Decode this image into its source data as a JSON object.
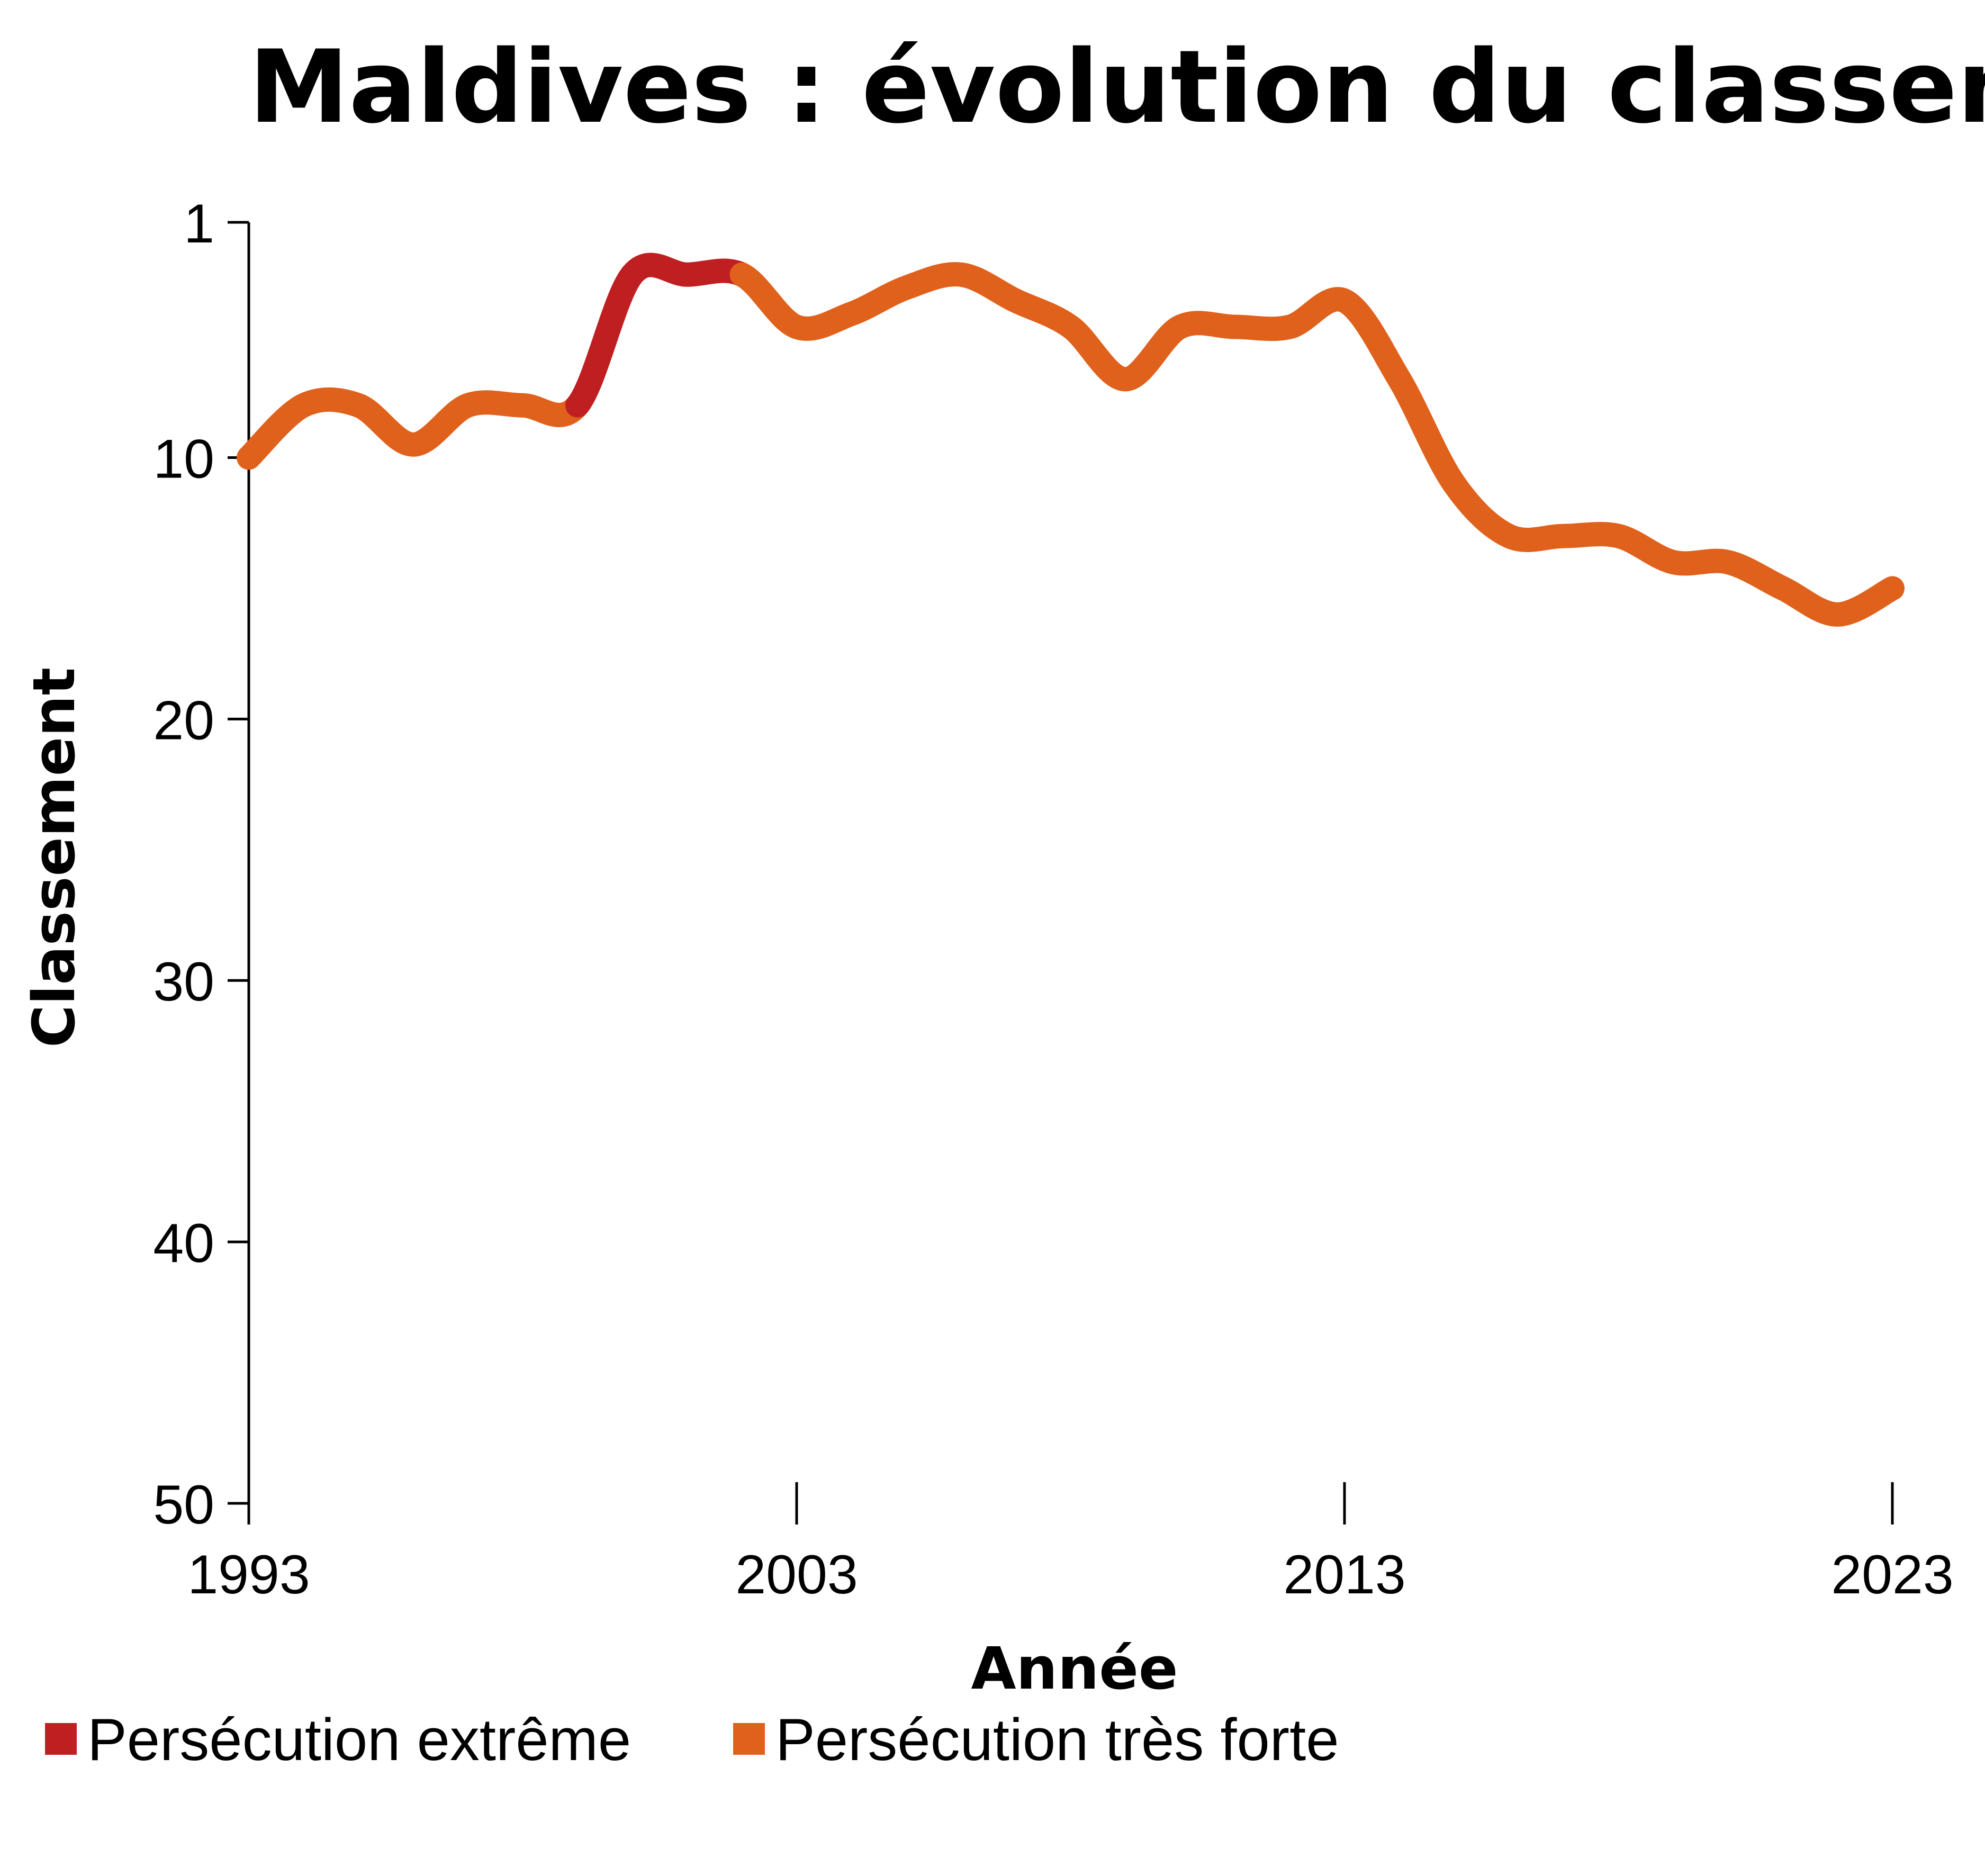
{
  "chart_data": {
    "type": "line",
    "title": "Maldives : évolution du classement",
    "xlabel": "Année",
    "ylabel": "Classement",
    "xlim": [
      1993,
      2023
    ],
    "ylim": [
      1,
      50
    ],
    "y_inverted": true,
    "x_ticks": [
      1993,
      2003,
      2013,
      2023
    ],
    "y_ticks": [
      1,
      10,
      20,
      30,
      40,
      50
    ],
    "x_tick_labels": [
      "1993",
      "2003",
      "2013",
      "2023"
    ],
    "y_tick_labels": [
      "1",
      "10",
      "20",
      "30",
      "40",
      "50"
    ],
    "grid": false,
    "legend_position": "bottom-left",
    "categories": [
      {
        "key": "extreme",
        "label": "Persécution extrême",
        "color": "#c01f22"
      },
      {
        "key": "very_strong",
        "label": "Persécution très forte",
        "color": "#e0611c"
      }
    ],
    "points": [
      {
        "year": 1993,
        "rank": 10,
        "category": "very_strong"
      },
      {
        "year": 1994,
        "rank": 8,
        "category": "very_strong"
      },
      {
        "year": 1995,
        "rank": 8,
        "category": "very_strong"
      },
      {
        "year": 1996,
        "rank": 9.5,
        "category": "very_strong"
      },
      {
        "year": 1997,
        "rank": 8,
        "category": "very_strong"
      },
      {
        "year": 1998,
        "rank": 8,
        "category": "very_strong"
      },
      {
        "year": 1999,
        "rank": 8,
        "category": "very_strong"
      },
      {
        "year": 2000,
        "rank": 3,
        "category": "extreme"
      },
      {
        "year": 2001,
        "rank": 3,
        "category": "extreme"
      },
      {
        "year": 2002,
        "rank": 3,
        "category": "extreme"
      },
      {
        "year": 2003,
        "rank": 5,
        "category": "very_strong"
      },
      {
        "year": 2004,
        "rank": 4.5,
        "category": "very_strong"
      },
      {
        "year": 2005,
        "rank": 3.5,
        "category": "very_strong"
      },
      {
        "year": 2006,
        "rank": 3,
        "category": "very_strong"
      },
      {
        "year": 2007,
        "rank": 4,
        "category": "very_strong"
      },
      {
        "year": 2008,
        "rank": 5,
        "category": "very_strong"
      },
      {
        "year": 2009,
        "rank": 7,
        "category": "very_strong"
      },
      {
        "year": 2010,
        "rank": 5,
        "category": "very_strong"
      },
      {
        "year": 2011,
        "rank": 5,
        "category": "very_strong"
      },
      {
        "year": 2012,
        "rank": 5,
        "category": "very_strong"
      },
      {
        "year": 2013,
        "rank": 4,
        "category": "very_strong"
      },
      {
        "year": 2014,
        "rank": 7,
        "category": "very_strong"
      },
      {
        "year": 2015,
        "rank": 11,
        "category": "very_strong"
      },
      {
        "year": 2016,
        "rank": 13,
        "category": "very_strong"
      },
      {
        "year": 2017,
        "rank": 13,
        "category": "very_strong"
      },
      {
        "year": 2018,
        "rank": 13,
        "category": "very_strong"
      },
      {
        "year": 2019,
        "rank": 14,
        "category": "very_strong"
      },
      {
        "year": 2020,
        "rank": 14,
        "category": "very_strong"
      },
      {
        "year": 2021,
        "rank": 15,
        "category": "very_strong"
      },
      {
        "year": 2022,
        "rank": 16,
        "category": "very_strong"
      },
      {
        "year": 2023,
        "rank": 15,
        "category": "very_strong"
      }
    ]
  }
}
